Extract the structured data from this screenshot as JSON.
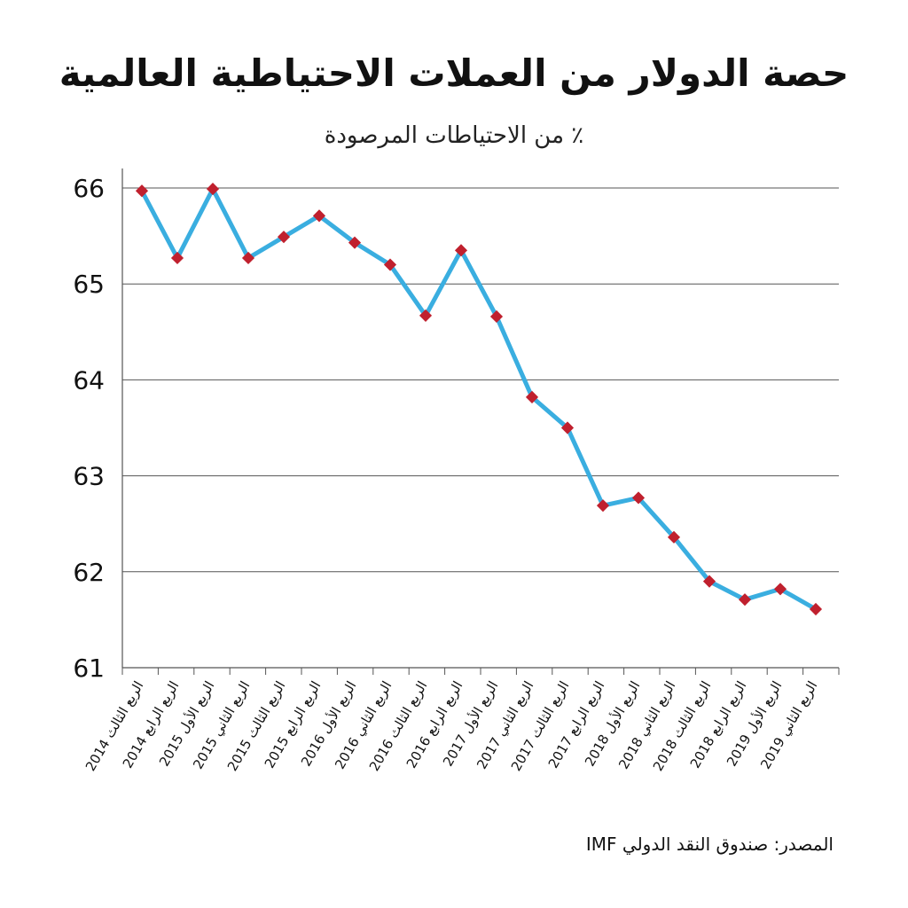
{
  "title": "حصة الدولار من العملات الاحتياطية العالمية",
  "subtitle": "٪ من الاحتياطات المرصودة",
  "source": "المصدر: صندوق النقد الدولي IMF",
  "colors": {
    "line": "#3aaee0",
    "marker": "#c0202e",
    "grid": "#555555",
    "text": "#111111"
  },
  "chart_data": {
    "type": "line",
    "title": "حصة الدولار من العملات الاحتياطية العالمية",
    "ylabel": "٪ من الاحتياطات المرصودة",
    "xlabel": "",
    "ylim": [
      61,
      66
    ],
    "yticks": [
      61,
      62,
      63,
      64,
      65,
      66
    ],
    "grid": true,
    "categories": [
      "الربع الثالث 2014",
      "الربع الرابع 2014",
      "الربع الأول 2015",
      "الربع الثاني 2015",
      "الربع الثالث 2015",
      "الربع الرابع 2015",
      "الربع الأول 2016",
      "الربع الثاني 2016",
      "الربع الثالث 2016",
      "الربع الرابع 2016",
      "الربع الأول 2017",
      "الربع الثاني 2017",
      "الربع الثالث 2017",
      "الربع الرابع 2017",
      "الربع الأول 2018",
      "الربع الثاني 2018",
      "الربع الثالث 2018",
      "الربع الرابع 2018",
      "الربع الأول 2019",
      "الربع الثاني 2019"
    ],
    "series": [
      {
        "values": [
          65.97,
          65.27,
          65.99,
          65.27,
          65.49,
          65.71,
          65.43,
          65.2,
          64.67,
          65.35,
          64.66,
          63.82,
          63.5,
          62.69,
          62.77,
          62.36,
          61.9,
          61.71,
          61.82,
          61.61
        ]
      }
    ]
  }
}
